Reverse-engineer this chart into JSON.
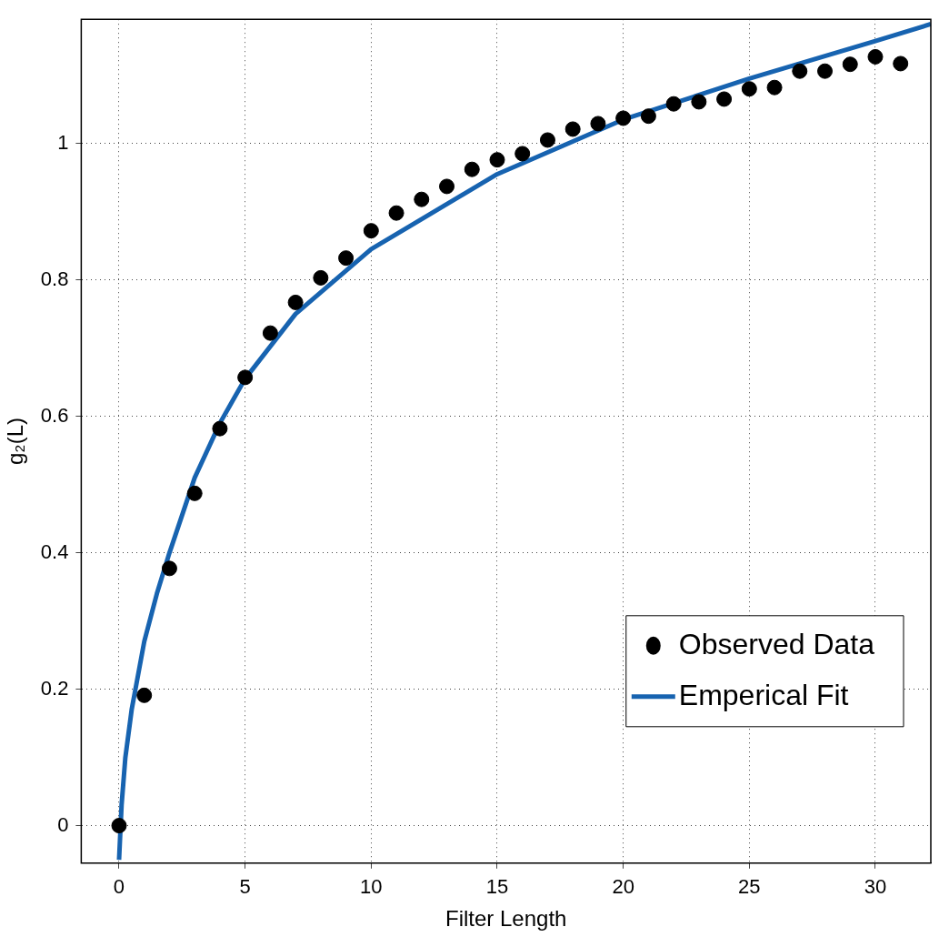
{
  "chart_data": {
    "type": "scatter",
    "xlabel": "Filter Length",
    "ylabel": "g₂(L)",
    "xlim": [
      -1.5,
      32.2
    ],
    "ylim": [
      -0.055,
      1.182
    ],
    "xticks": [
      0,
      5,
      10,
      15,
      20,
      25,
      30
    ],
    "yticks": [
      0,
      0.2,
      0.4,
      0.6,
      0.8,
      1
    ],
    "grid": true,
    "legend": "bottom right",
    "series": [
      {
        "name": "Observed Data",
        "marker": "circle",
        "color": "#000000",
        "x": [
          0,
          1,
          2,
          3,
          4,
          5,
          6,
          7,
          8,
          9,
          10,
          11,
          12,
          13,
          14,
          15,
          16,
          17,
          18,
          19,
          20,
          21,
          22,
          23,
          24,
          25,
          26,
          27,
          28,
          29,
          30,
          31
        ],
        "values": [
          0,
          0.191,
          0.377,
          0.487,
          0.582,
          0.657,
          0.722,
          0.767,
          0.803,
          0.832,
          0.872,
          0.898,
          0.918,
          0.937,
          0.962,
          0.976,
          0.985,
          1.005,
          1.021,
          1.029,
          1.037,
          1.04,
          1.058,
          1.061,
          1.065,
          1.08,
          1.082,
          1.106,
          1.106,
          1.116,
          1.127,
          1.117
        ]
      },
      {
        "name": "Emperical Fit",
        "type": "line",
        "marker": "none",
        "line_style": "solid",
        "color": "#1763b0",
        "x": [
          0,
          0.1,
          0.25,
          0.5,
          1,
          1.5,
          2,
          3,
          4,
          5,
          7,
          10,
          15,
          20,
          25,
          30,
          32.2
        ],
        "values": [
          -0.05,
          0.03,
          0.1,
          0.17,
          0.27,
          0.34,
          0.4,
          0.51,
          0.59,
          0.655,
          0.75,
          0.845,
          0.955,
          1.035,
          1.095,
          1.15,
          1.175
        ]
      }
    ]
  }
}
